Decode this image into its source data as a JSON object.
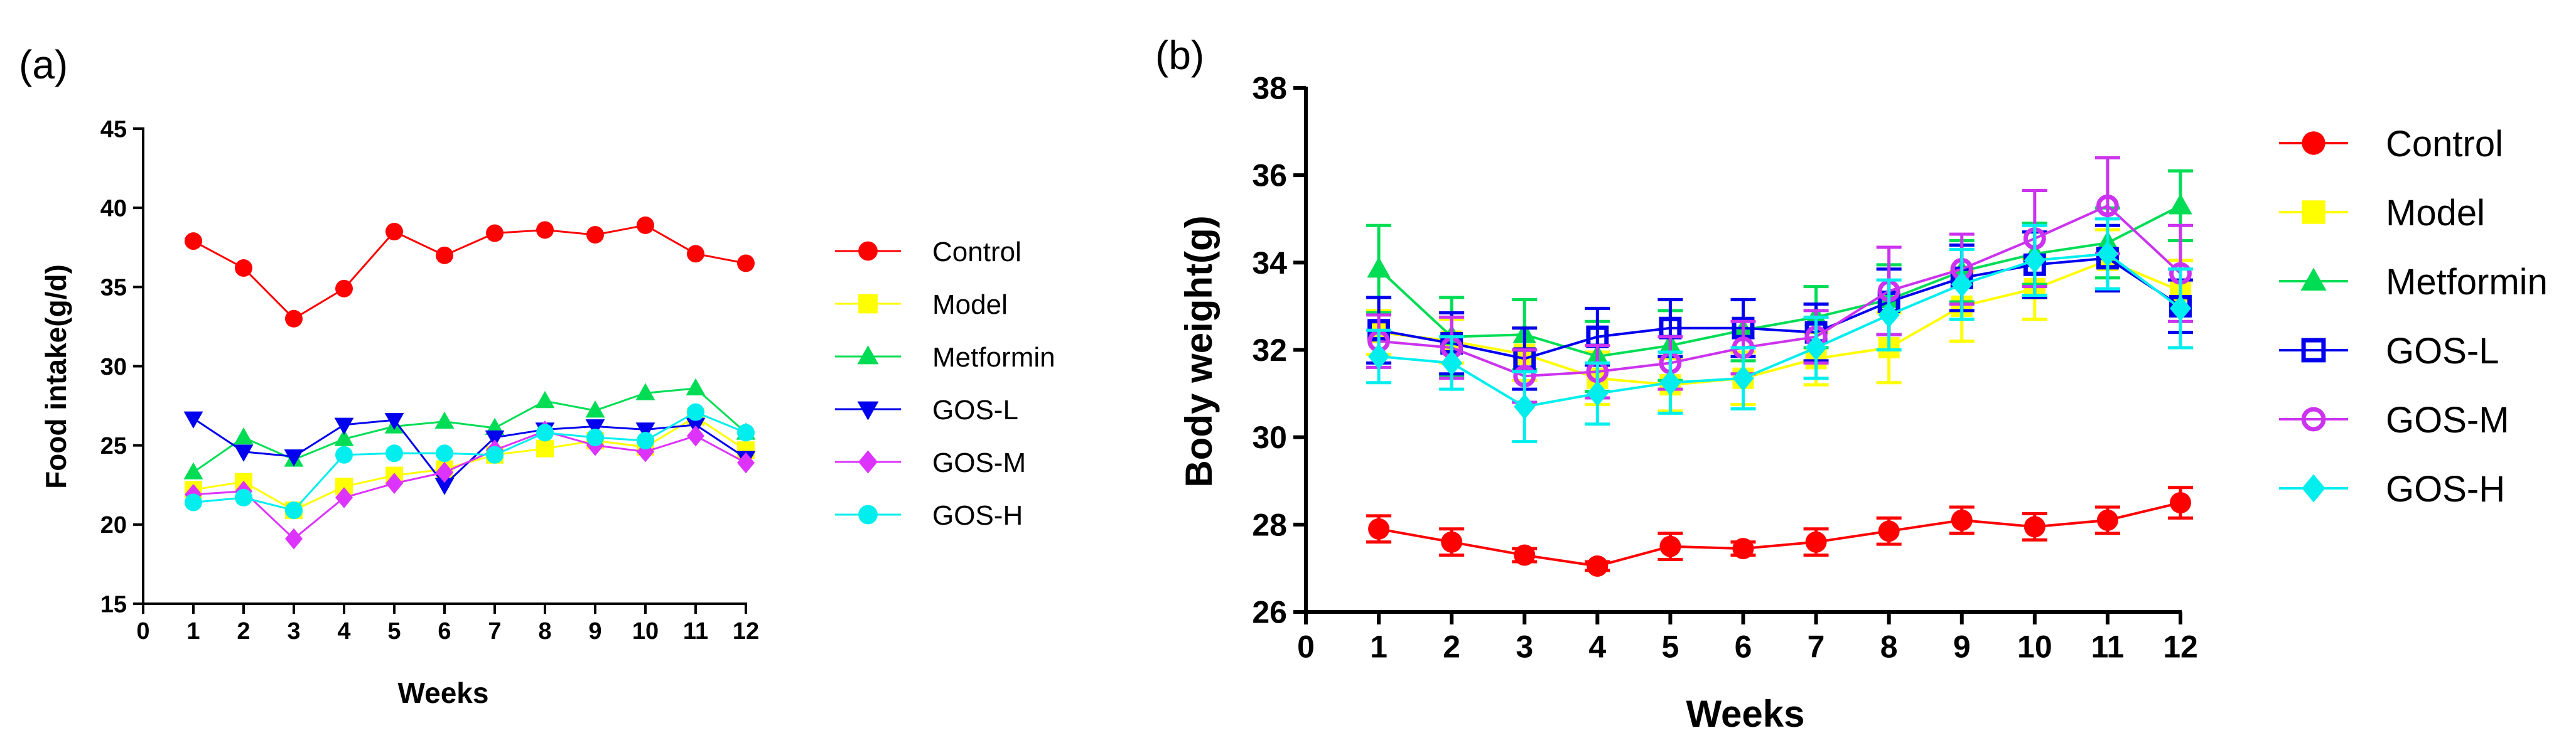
{
  "chart_data": [
    {
      "panel_label": "(a)",
      "type": "line",
      "xlabel": "Weeks",
      "ylabel": "Food intake(g/d)",
      "xlim": [
        0,
        12
      ],
      "ylim": [
        15,
        45
      ],
      "xticks": [
        0,
        1,
        2,
        3,
        4,
        5,
        6,
        7,
        8,
        9,
        10,
        11,
        12
      ],
      "yticks": [
        15,
        20,
        25,
        30,
        35,
        40,
        45
      ],
      "grid": false,
      "legend_position": "right",
      "x": [
        1,
        2,
        3,
        4,
        5,
        6,
        7,
        8,
        9,
        10,
        11,
        12
      ],
      "series": [
        {
          "name": "Control",
          "color": "#ff0000",
          "marker": "circle",
          "values": [
            37.9,
            36.2,
            33.0,
            34.9,
            38.5,
            37.0,
            38.4,
            38.6,
            38.3,
            38.9,
            37.1,
            36.5
          ]
        },
        {
          "name": "Model",
          "color": "#ffff00",
          "marker": "square",
          "values": [
            22.2,
            22.7,
            20.9,
            22.4,
            23.1,
            23.5,
            24.4,
            24.8,
            25.3,
            24.9,
            26.8,
            24.7
          ]
        },
        {
          "name": "Metformin",
          "color": "#00dd55",
          "marker": "triangle-up",
          "values": [
            23.3,
            25.5,
            24.1,
            25.4,
            26.2,
            26.5,
            26.1,
            27.8,
            27.2,
            28.3,
            28.6,
            25.8
          ]
        },
        {
          "name": "GOS-L",
          "color": "#0000ee",
          "marker": "triangle-down",
          "values": [
            26.7,
            24.6,
            24.3,
            26.3,
            26.6,
            22.5,
            25.5,
            26.0,
            26.2,
            26.0,
            26.3,
            24.2
          ]
        },
        {
          "name": "GOS-M",
          "color": "#dd33ff",
          "marker": "diamond",
          "values": [
            21.9,
            22.1,
            19.1,
            21.7,
            22.6,
            23.3,
            24.7,
            25.9,
            25.0,
            24.6,
            25.6,
            23.9
          ]
        },
        {
          "name": "GOS-H",
          "color": "#00eeee",
          "marker": "circle",
          "values": [
            21.4,
            21.7,
            20.9,
            24.4,
            24.5,
            24.5,
            24.4,
            25.8,
            25.5,
            25.3,
            27.1,
            25.8
          ]
        }
      ]
    },
    {
      "panel_label": "(b)",
      "type": "line",
      "xlabel": "Weeks",
      "ylabel": "Body weight(g)",
      "xlim": [
        0,
        12
      ],
      "ylim": [
        26,
        38
      ],
      "xticks": [
        0,
        1,
        2,
        3,
        4,
        5,
        6,
        7,
        8,
        9,
        10,
        11,
        12
      ],
      "yticks": [
        26,
        28,
        30,
        32,
        34,
        36,
        38
      ],
      "grid": false,
      "legend_position": "right",
      "error_bars": true,
      "x": [
        1,
        2,
        3,
        4,
        5,
        6,
        7,
        8,
        9,
        10,
        11,
        12
      ],
      "series": [
        {
          "name": "Control",
          "color": "#ff0000",
          "marker": "circle",
          "values": [
            27.9,
            27.6,
            27.3,
            27.05,
            27.5,
            27.45,
            27.6,
            27.85,
            28.1,
            27.95,
            28.1,
            28.5
          ],
          "errors": [
            0.3,
            0.3,
            0.15,
            0.1,
            0.3,
            0.15,
            0.3,
            0.3,
            0.3,
            0.3,
            0.3,
            0.35
          ]
        },
        {
          "name": "Model",
          "color": "#ffff00",
          "marker": "square",
          "values": [
            32.4,
            32.2,
            31.9,
            31.35,
            31.2,
            31.35,
            31.8,
            32.05,
            33.0,
            33.4,
            34.05,
            33.35
          ],
          "errors": [
            0.5,
            0.5,
            0.6,
            0.6,
            0.6,
            0.6,
            0.6,
            0.8,
            0.8,
            0.7,
            0.7,
            0.7
          ]
        },
        {
          "name": "Metformin",
          "color": "#00dd55",
          "marker": "triangle-up",
          "values": [
            33.85,
            32.3,
            32.35,
            31.85,
            32.1,
            32.45,
            32.75,
            33.15,
            33.8,
            34.2,
            34.45,
            35.3
          ],
          "errors": [
            1.0,
            0.9,
            0.8,
            0.8,
            0.8,
            0.7,
            0.7,
            0.8,
            0.7,
            0.7,
            0.8,
            0.8
          ]
        },
        {
          "name": "GOS-L",
          "color": "#0000ee",
          "marker": "square-open",
          "values": [
            32.45,
            32.15,
            31.8,
            32.3,
            32.5,
            32.5,
            32.4,
            33.1,
            33.65,
            33.95,
            34.1,
            33.0
          ],
          "errors": [
            0.75,
            0.7,
            0.7,
            0.65,
            0.65,
            0.65,
            0.65,
            0.75,
            0.75,
            0.75,
            0.75,
            0.6
          ]
        },
        {
          "name": "GOS-M",
          "color": "#cc33ee",
          "marker": "circle-open",
          "values": [
            32.2,
            32.05,
            31.4,
            31.5,
            31.7,
            32.05,
            32.3,
            33.35,
            33.85,
            34.55,
            35.3,
            33.75
          ],
          "errors": [
            0.6,
            0.7,
            0.6,
            0.6,
            0.6,
            0.6,
            0.6,
            1.0,
            0.8,
            1.1,
            1.1,
            1.1
          ]
        },
        {
          "name": "GOS-H",
          "color": "#00eeee",
          "marker": "diamond",
          "values": [
            31.85,
            31.7,
            30.7,
            31.0,
            31.25,
            31.35,
            32.05,
            32.8,
            33.5,
            34.05,
            34.2,
            32.95
          ],
          "errors": [
            0.6,
            0.6,
            0.8,
            0.7,
            0.7,
            0.7,
            0.7,
            0.8,
            0.8,
            0.8,
            0.8,
            0.9
          ]
        }
      ]
    }
  ]
}
